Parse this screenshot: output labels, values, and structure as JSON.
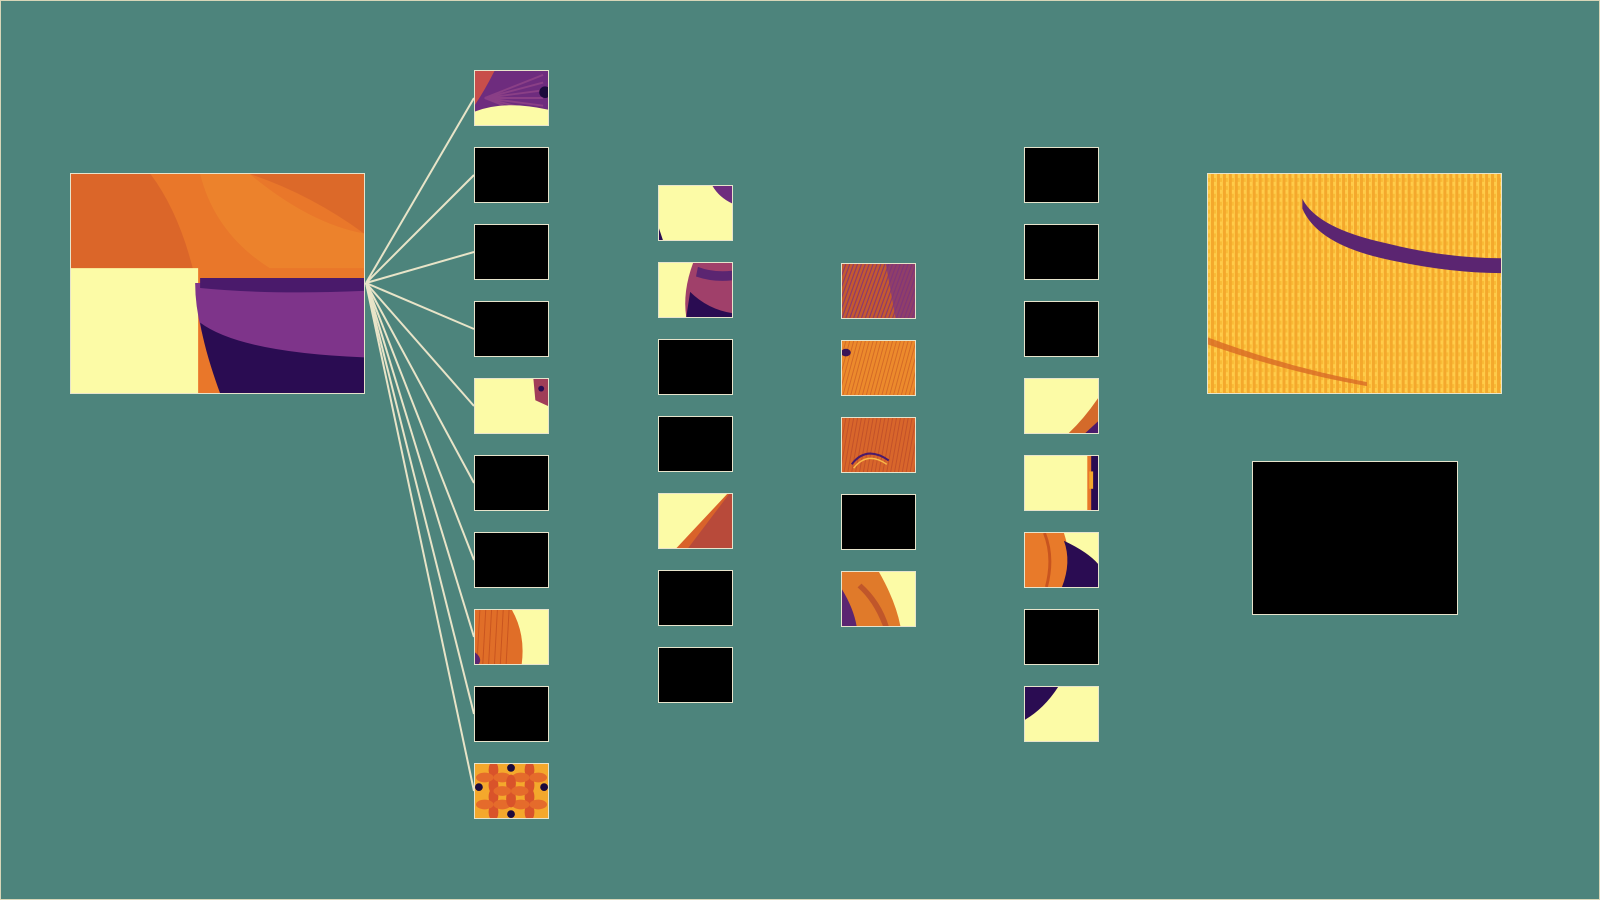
{
  "palette": {
    "background": "#4d847c",
    "border": "#e7e4cc",
    "connector": "#e8e4c8",
    "black": "#000000",
    "cream": "#fcfba6",
    "orange": "#e87827",
    "deep_orange": "#d45b2b",
    "purple": "#6e2c7e",
    "dark_purple": "#2a0c52",
    "gold": "#f4a82c"
  },
  "diagram": {
    "nodes": {
      "input_image": {
        "pattern": "petal-corner",
        "fills": [
          "#e9772a",
          "#fcfba6",
          "#6e2c7e",
          "#2a0c52"
        ]
      },
      "output_image": {
        "pattern": "gold-stroke",
        "fills": [
          "#f4a82c",
          "#ffd254",
          "#5b2571"
        ]
      },
      "output_blank": {
        "pattern": "black"
      }
    },
    "columns": [
      {
        "name": "layer-1",
        "tiles": [
          {
            "pattern": "purple-fan"
          },
          {
            "pattern": "black"
          },
          {
            "pattern": "black"
          },
          {
            "pattern": "black"
          },
          {
            "pattern": "cream-corner-dot"
          },
          {
            "pattern": "black"
          },
          {
            "pattern": "black"
          },
          {
            "pattern": "orange-cream-split"
          },
          {
            "pattern": "black"
          },
          {
            "pattern": "flower-tile"
          }
        ]
      },
      {
        "name": "layer-2",
        "tiles": [
          {
            "pattern": "cream-top-corner"
          },
          {
            "pattern": "cream-cylinder"
          },
          {
            "pattern": "black"
          },
          {
            "pattern": "black"
          },
          {
            "pattern": "cream-diagonal"
          },
          {
            "pattern": "black"
          },
          {
            "pattern": "black"
          }
        ]
      },
      {
        "name": "layer-3",
        "tiles": [
          {
            "pattern": "textured-purple"
          },
          {
            "pattern": "textured-orange"
          },
          {
            "pattern": "textured-arc"
          },
          {
            "pattern": "black"
          },
          {
            "pattern": "orange-cream-diagonal"
          }
        ]
      },
      {
        "name": "layer-4",
        "tiles": [
          {
            "pattern": "black"
          },
          {
            "pattern": "black"
          },
          {
            "pattern": "black"
          },
          {
            "pattern": "cream-corner-purple"
          },
          {
            "pattern": "cream-right-bar"
          },
          {
            "pattern": "orange-purple-blob"
          },
          {
            "pattern": "black"
          },
          {
            "pattern": "cream-purple-corner"
          }
        ]
      }
    ],
    "connections": {
      "from": "input_image",
      "to_column": "layer-1",
      "count": 10
    }
  }
}
